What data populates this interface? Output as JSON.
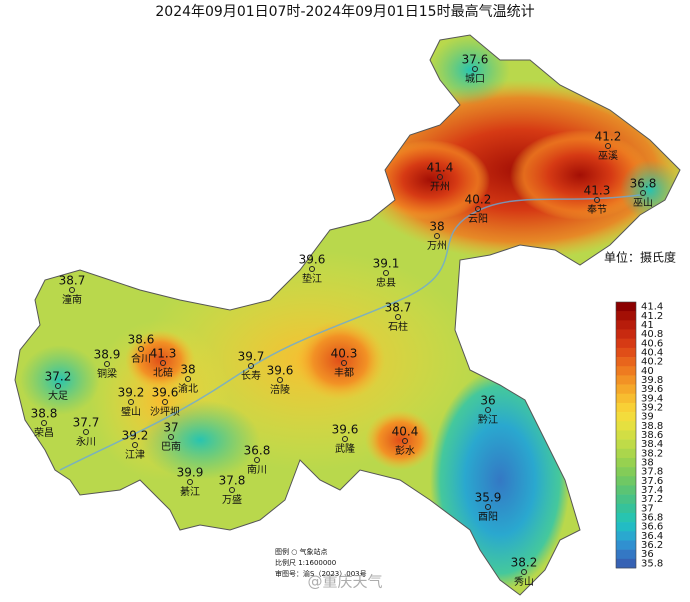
{
  "title": "2024年09月01日07时-2024年09月01日15时最高气温统计",
  "stations": [
    {
      "name": "城口",
      "value": 37.6
    },
    {
      "name": "巫溪",
      "value": 41.2
    },
    {
      "name": "开州",
      "value": 41.4
    },
    {
      "name": "云阳",
      "value": 40.2
    },
    {
      "name": "奉节",
      "value": 41.3
    },
    {
      "name": "巫山",
      "value": 36.8
    },
    {
      "name": "万州",
      "value": 38
    },
    {
      "name": "垫江",
      "value": 39.6
    },
    {
      "name": "忠县",
      "value": 39.1
    },
    {
      "name": "石柱",
      "value": 38.7
    },
    {
      "name": "丰都",
      "value": 40.3
    },
    {
      "name": "长寿",
      "value": 39.7
    },
    {
      "name": "涪陵",
      "value": 39.6
    },
    {
      "name": "潼南",
      "value": 38.7
    },
    {
      "name": "合川",
      "value": 38.6
    },
    {
      "name": "铜梁",
      "value": 38.9
    },
    {
      "name": "北碚",
      "value": 41.3
    },
    {
      "name": "渝北",
      "value": 38
    },
    {
      "name": "大足",
      "value": 37.2
    },
    {
      "name": "璧山",
      "value": 39.2
    },
    {
      "name": "沙坪坝",
      "value": 39.6
    },
    {
      "name": "荣昌",
      "value": 38.8
    },
    {
      "name": "永川",
      "value": 37.7
    },
    {
      "name": "江津",
      "value": 39.2
    },
    {
      "name": "巴南",
      "value": 37
    },
    {
      "name": "武隆",
      "value": 39.6
    },
    {
      "name": "彭水",
      "value": 40.4
    },
    {
      "name": "黔江",
      "value": 36
    },
    {
      "name": "南川",
      "value": 36.8
    },
    {
      "name": "綦江",
      "value": 39.9
    },
    {
      "name": "万盛",
      "value": 37.8
    },
    {
      "name": "酉阳",
      "value": 35.9
    },
    {
      "name": "秀山",
      "value": 38.2
    }
  ],
  "legend": {
    "unit": "单位：摄氏度",
    "ticks": [
      41.4,
      41.2,
      41,
      40.8,
      40.6,
      40.4,
      40.2,
      40,
      39.8,
      39.6,
      39.4,
      39.2,
      39,
      38.8,
      38.6,
      38.4,
      38.2,
      38,
      37.8,
      37.6,
      37.4,
      37.2,
      37,
      36.8,
      36.6,
      36.4,
      36.2,
      36,
      35.8
    ],
    "colors": [
      "#8b0000",
      "#a30f05",
      "#b71c0b",
      "#c82a10",
      "#d63a14",
      "#e04e18",
      "#e8651c",
      "#ee7b20",
      "#f29225",
      "#f5a82a",
      "#f7bd30",
      "#f8d036",
      "#f3dc3c",
      "#e5e040",
      "#d2de44",
      "#bfdb48",
      "#abd64c",
      "#97d150",
      "#83cc58",
      "#6fc864",
      "#5bc474",
      "#48c286",
      "#36c29a",
      "#28c4b0",
      "#22bcc4",
      "#2aa8cf",
      "#3090d0",
      "#3478c4",
      "#3662b4"
    ]
  },
  "map_legend": {
    "symbol": "图例  ○  气象站点",
    "scale": "比例尺  1:1600000",
    "approval": "审图号：渝S（2023）003号"
  },
  "watermark": "@重庆天气"
}
